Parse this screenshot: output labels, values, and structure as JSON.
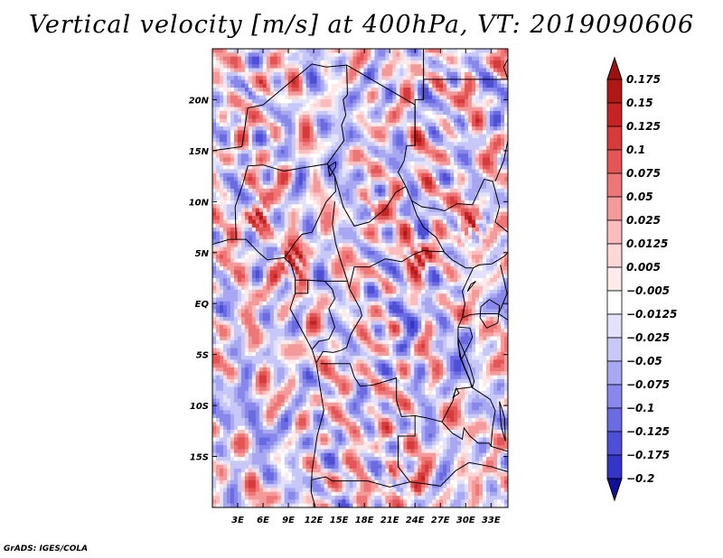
{
  "title": "Vertical velocity [m/s] at 400hPa, VT: 2019090606",
  "credit": "GrADS: IGES/COLA",
  "map": {
    "variable": "Vertical velocity",
    "units": "m/s",
    "level": "400hPa",
    "valid_time": "2019090606",
    "lon_range": [
      0,
      35
    ],
    "lat_range": [
      -20,
      25
    ],
    "lat_ticks": [
      {
        "value": 20,
        "label": "20N"
      },
      {
        "value": 15,
        "label": "15N"
      },
      {
        "value": 10,
        "label": "10N"
      },
      {
        "value": 5,
        "label": "5N"
      },
      {
        "value": 0,
        "label": "EQ"
      },
      {
        "value": -5,
        "label": "5S"
      },
      {
        "value": -10,
        "label": "10S"
      },
      {
        "value": -15,
        "label": "15S"
      }
    ],
    "lon_ticks": [
      {
        "value": 3,
        "label": "3E"
      },
      {
        "value": 6,
        "label": "6E"
      },
      {
        "value": 9,
        "label": "9E"
      },
      {
        "value": 12,
        "label": "12E"
      },
      {
        "value": 15,
        "label": "15E"
      },
      {
        "value": 18,
        "label": "18E"
      },
      {
        "value": 21,
        "label": "21E"
      },
      {
        "value": 24,
        "label": "24E"
      },
      {
        "value": 27,
        "label": "27E"
      },
      {
        "value": 30,
        "label": "30E"
      },
      {
        "value": 33,
        "label": "33E"
      }
    ],
    "hotspots": [
      {
        "lon": 9.5,
        "lat": 4.0,
        "strength": 0.18
      },
      {
        "lon": 5.5,
        "lat": 8.5,
        "strength": 0.13
      },
      {
        "lon": 24.5,
        "lat": 4.5,
        "strength": 0.15
      },
      {
        "lon": 31.0,
        "lat": 7.5,
        "strength": 0.12
      },
      {
        "lon": 21.0,
        "lat": -17.0,
        "strength": 0.07
      },
      {
        "lon": 24.0,
        "lat": -18.0,
        "strength": 0.06
      },
      {
        "lon": 5.0,
        "lat": 21.0,
        "strength": 0.05
      },
      {
        "lon": 19.0,
        "lat": 9.5,
        "strength": 0.06
      }
    ],
    "coldspots": [
      {
        "lon": 2.5,
        "lat": -11.0,
        "strength": 0.06
      },
      {
        "lon": 9.0,
        "lat": -14.0,
        "strength": 0.05
      },
      {
        "lon": 23.0,
        "lat": -1.0,
        "strength": 0.05
      },
      {
        "lon": 15.0,
        "lat": 13.0,
        "strength": 0.05
      },
      {
        "lon": 16.0,
        "lat": 20.0,
        "strength": 0.04
      },
      {
        "lon": 29.0,
        "lat": -6.0,
        "strength": 0.05
      }
    ],
    "boundary_color": "#000000"
  },
  "colorbar": {
    "levels": [
      {
        "label": "0.175",
        "color": "#b01818"
      },
      {
        "label": "0.15",
        "color": "#c42424"
      },
      {
        "label": "0.125",
        "color": "#d63a3a"
      },
      {
        "label": "0.1",
        "color": "#e45555"
      },
      {
        "label": "0.075",
        "color": "#ee7676"
      },
      {
        "label": "0.05",
        "color": "#f59a9a"
      },
      {
        "label": "0.025",
        "color": "#fabcbc"
      },
      {
        "label": "0.0125",
        "color": "#fdd6d6"
      },
      {
        "label": "0.005",
        "color": "#feeaea"
      },
      {
        "label": "-0.005",
        "color": "#ffffff"
      },
      {
        "label": "-0.0125",
        "color": "#e2e2fc"
      },
      {
        "label": "-0.025",
        "color": "#c7c7f8"
      },
      {
        "label": "-0.05",
        "color": "#a8a8f2"
      },
      {
        "label": "-0.075",
        "color": "#8888ec"
      },
      {
        "label": "-0.1",
        "color": "#6a6ae2"
      },
      {
        "label": "-0.125",
        "color": "#4e4ed6"
      },
      {
        "label": "-0.175",
        "color": "#3434c6"
      },
      {
        "label": "-0.2",
        "color": "#1f1fb0"
      }
    ],
    "top_arrow_color": "#a01010",
    "bottom_arrow_color": "#10109a"
  }
}
